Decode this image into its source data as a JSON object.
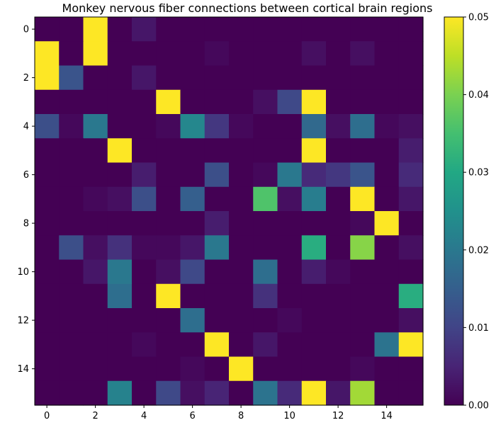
{
  "chart_data": {
    "type": "heatmap",
    "title": "Monkey nervous fiber connections between cortical brain regions",
    "xlabel": "",
    "ylabel": "",
    "colormap": "viridis",
    "clim": [
      0,
      0.05
    ],
    "x_ticks": [
      0,
      2,
      4,
      6,
      8,
      10,
      12,
      14
    ],
    "y_ticks": [
      0,
      2,
      4,
      6,
      8,
      10,
      12,
      14
    ],
    "colorbar_ticks": [
      "0.00",
      "0.01",
      "0.02",
      "0.03",
      "0.04",
      "0.05"
    ],
    "colorbar_tick_values": [
      0,
      0.01,
      0.02,
      0.03,
      0.04,
      0.05
    ],
    "matrix": [
      [
        0,
        0,
        0.05,
        0,
        0.003,
        0,
        0,
        0,
        0,
        0,
        0,
        0,
        0,
        0,
        0,
        0
      ],
      [
        0.05,
        0,
        0.05,
        0,
        0,
        0,
        0,
        0.001,
        0,
        0,
        0,
        0.002,
        0,
        0.002,
        0,
        0
      ],
      [
        0.05,
        0.013,
        0,
        0,
        0.003,
        0,
        0,
        0,
        0,
        0,
        0,
        0,
        0,
        0,
        0,
        0
      ],
      [
        0,
        0,
        0,
        0,
        0,
        0.05,
        0,
        0,
        0,
        0.002,
        0.011,
        0.05,
        0,
        0,
        0,
        0
      ],
      [
        0.012,
        0.001,
        0.02,
        0,
        0,
        0.001,
        0.023,
        0.008,
        0.001,
        0,
        0,
        0.017,
        0.002,
        0.018,
        0.001,
        0.002
      ],
      [
        0,
        0,
        0,
        0.05,
        0,
        0,
        0,
        0,
        0,
        0,
        0,
        0.05,
        0,
        0,
        0,
        0.004
      ],
      [
        0,
        0,
        0,
        0,
        0.004,
        0,
        0,
        0.012,
        0,
        0.001,
        0.02,
        0.006,
        0.008,
        0.013,
        0,
        0.006
      ],
      [
        0,
        0,
        0.001,
        0.002,
        0.012,
        0,
        0.015,
        0,
        0,
        0.036,
        0.002,
        0.021,
        0,
        0.05,
        0,
        0.003
      ],
      [
        0,
        0,
        0,
        0,
        0,
        0,
        0,
        0.004,
        0,
        0,
        0,
        0,
        0,
        0.001,
        0.05,
        0
      ],
      [
        0,
        0.012,
        0.002,
        0.007,
        0.001,
        0.001,
        0.003,
        0.02,
        0,
        0,
        0,
        0.031,
        0,
        0.041,
        0,
        0.002
      ],
      [
        0,
        0,
        0.003,
        0.02,
        0,
        0.002,
        0.011,
        0,
        0,
        0.018,
        0,
        0.004,
        0.001,
        0,
        0,
        0
      ],
      [
        0,
        0,
        0,
        0.018,
        0,
        0.05,
        0,
        0,
        0,
        0.007,
        0,
        0,
        0,
        0,
        0,
        0.031
      ],
      [
        0,
        0,
        0,
        0,
        0,
        0,
        0.018,
        0,
        0,
        0,
        0.001,
        0,
        0,
        0,
        0,
        0.002
      ],
      [
        0,
        0,
        0,
        0,
        0.001,
        0,
        0,
        0.05,
        0,
        0.003,
        0,
        0,
        0,
        0,
        0.019,
        0.05
      ],
      [
        0,
        0,
        0,
        0,
        0,
        0,
        0.001,
        0,
        0.05,
        0,
        0,
        0,
        0,
        0.001,
        0,
        0
      ],
      [
        0,
        0,
        0,
        0.022,
        0,
        0.011,
        0.002,
        0.005,
        0,
        0.019,
        0.006,
        0.05,
        0.003,
        0.043,
        0,
        0
      ]
    ]
  }
}
